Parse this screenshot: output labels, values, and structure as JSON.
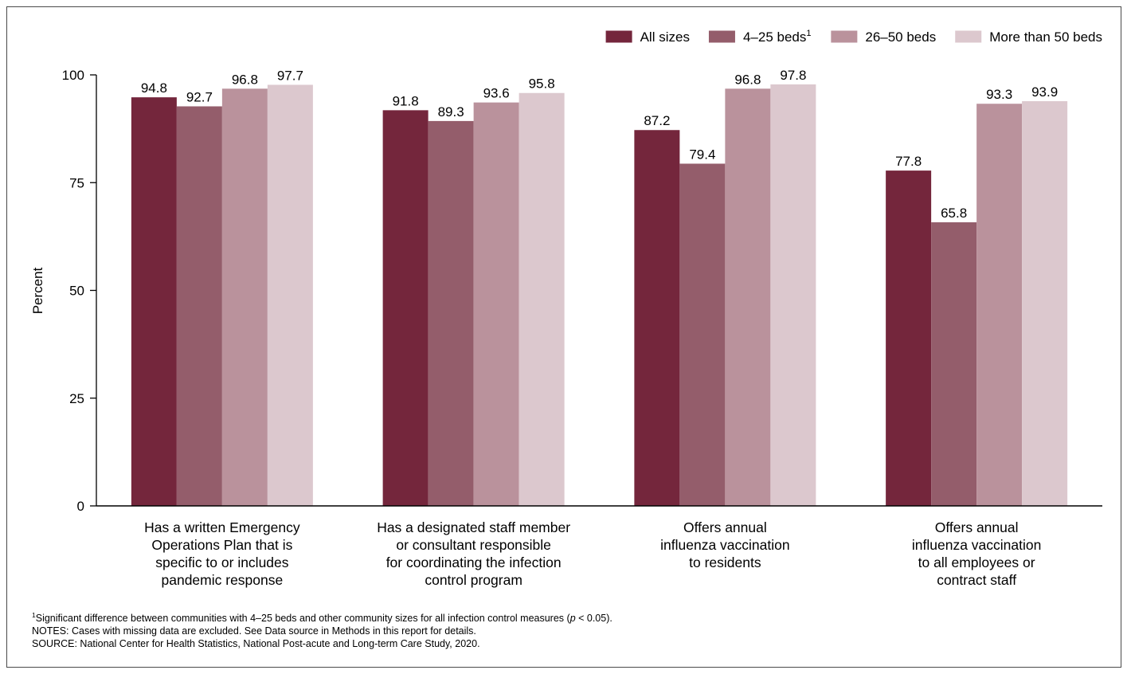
{
  "chart_data": {
    "type": "bar",
    "ylabel": "Percent",
    "ylim": [
      0,
      100
    ],
    "yticks": [
      "0",
      "25",
      "50",
      "75",
      "100"
    ],
    "grid": false,
    "legend_position": "top-right",
    "categories": [
      [
        "Has a written Emergency",
        "Operations Plan that is",
        "specific to or includes",
        "pandemic response"
      ],
      [
        "Has a designated staff member",
        "or consultant responsible",
        "for coordinating the infection",
        "control program"
      ],
      [
        "Offers annual",
        "influenza vaccination",
        "to residents"
      ],
      [
        "Offers annual",
        "influenza vaccination",
        "to all employees or",
        "contract staff"
      ]
    ],
    "series": [
      {
        "name": "All sizes",
        "color": "#74263c",
        "values": [
          94.8,
          91.8,
          87.2,
          77.8
        ]
      },
      {
        "name": "4–25 beds",
        "name_sup": "1",
        "color": "#945d6b",
        "values": [
          92.7,
          89.3,
          79.4,
          65.8
        ]
      },
      {
        "name": "26–50 beds",
        "color": "#ba929c",
        "values": [
          96.8,
          93.6,
          96.8,
          93.3
        ]
      },
      {
        "name": "More than 50 beds",
        "color": "#dcc8ce",
        "values": [
          97.7,
          95.8,
          97.8,
          93.9
        ]
      }
    ]
  },
  "notes": {
    "footnote_sup": "1",
    "footnote_pre": "Significant difference between communities with 4–25 beds and other community sizes for all infection control measures (",
    "footnote_p": "p",
    "footnote_post": " < 0.05).",
    "notes": "NOTES: Cases with missing data are excluded. See Data source in Methods in this report for details.",
    "source": "SOURCE: National Center for Health Statistics, National Post-acute and Long-term Care Study, 2020."
  }
}
